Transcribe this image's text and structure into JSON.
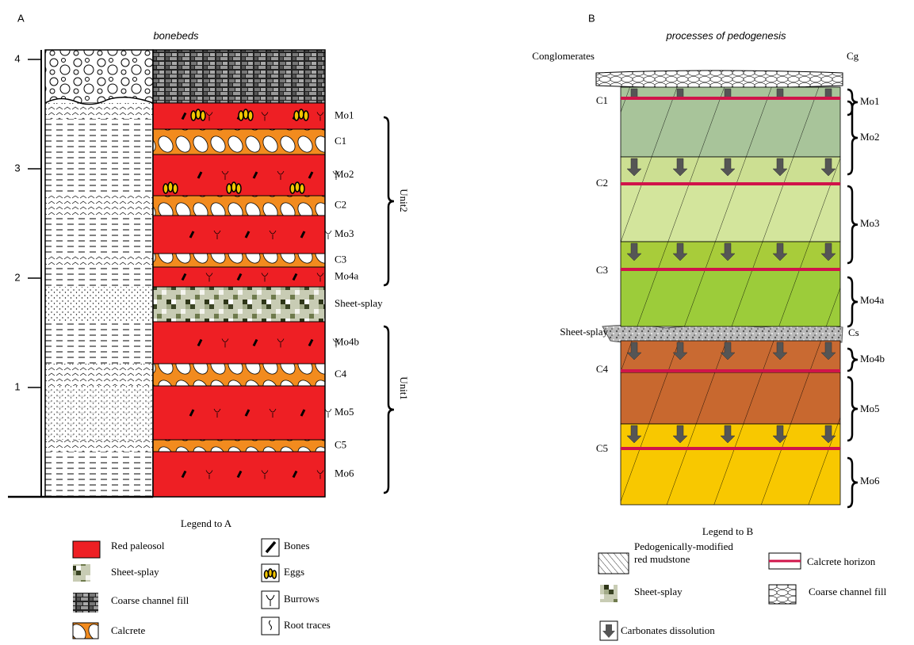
{
  "panel_a": {
    "label": "A",
    "title": "bonebeds",
    "depth_ticks": [
      "1",
      "2",
      "3",
      "4"
    ],
    "layers": [
      "Mo1",
      "C1",
      "Mo2",
      "C2",
      "Mo3",
      "C3",
      "Mo4a",
      "Sheet-splay",
      "Mo4b",
      "C4",
      "Mo5",
      "C5",
      "Mo6"
    ],
    "units": [
      "Unit2",
      "Unit1"
    ],
    "legend": {
      "title": "Legend to A",
      "items": [
        "Red paleosol",
        "Sheet-splay",
        "Coarse channel fill",
        "Calcrete",
        "Bones",
        "Eggs",
        "Burrows",
        "Root traces"
      ]
    }
  },
  "panel_b": {
    "label": "B",
    "title": "processes of pedogenesis",
    "left_labels": [
      "Conglomerates",
      "C1",
      "C2",
      "C3",
      "Sheet-splay",
      "C4",
      "C5"
    ],
    "right_labels": [
      "Cg",
      "Mo1",
      "Mo2",
      "Mo3",
      "Mo4a",
      "Cs",
      "Mo4b",
      "Mo5",
      "Mo6"
    ],
    "legend": {
      "title": "Legend to B",
      "items": [
        "Pedogenically-modified",
        "red mudstone",
        "Calcrete horizon",
        "Sheet-splay",
        "Coarse channel fill",
        "Carbonates dissolution"
      ]
    }
  }
}
